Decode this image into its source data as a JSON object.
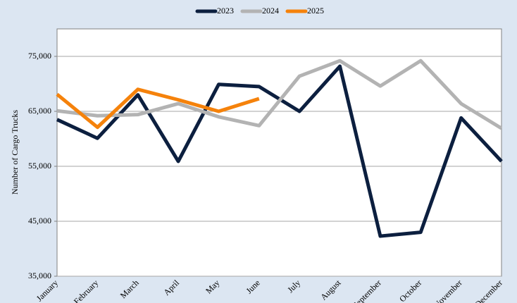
{
  "chart_data": {
    "type": "line",
    "ylabel": "Number of Cargo Trucks",
    "categories": [
      "January",
      "February",
      "March",
      "April",
      "May",
      "June",
      "July",
      "August",
      "September",
      "October",
      "November",
      "December"
    ],
    "series": [
      {
        "name": "2023",
        "color": "#0c1f3f",
        "values": [
          63500,
          60100,
          68000,
          55900,
          69900,
          69500,
          65000,
          73200,
          42300,
          43000,
          63800,
          55900
        ]
      },
      {
        "name": "2024",
        "color": "#b3b3b3",
        "values": [
          65100,
          64200,
          64400,
          66400,
          64000,
          62400,
          71400,
          74200,
          69600,
          74200,
          66400,
          61900
        ]
      },
      {
        "name": "2025",
        "color": "#f5820b",
        "values": [
          68100,
          62100,
          69000,
          67100,
          65000,
          67300,
          null,
          null,
          null,
          null,
          null,
          null
        ]
      }
    ],
    "ylim": [
      35000,
      80000
    ],
    "yticks": [
      {
        "value": 35000,
        "label": "35,000"
      },
      {
        "value": 45000,
        "label": "45,000"
      },
      {
        "value": 55000,
        "label": "55,000"
      },
      {
        "value": 65000,
        "label": "65,000"
      },
      {
        "value": 75000,
        "label": "75,000"
      }
    ],
    "grid": true,
    "legend": "top"
  }
}
